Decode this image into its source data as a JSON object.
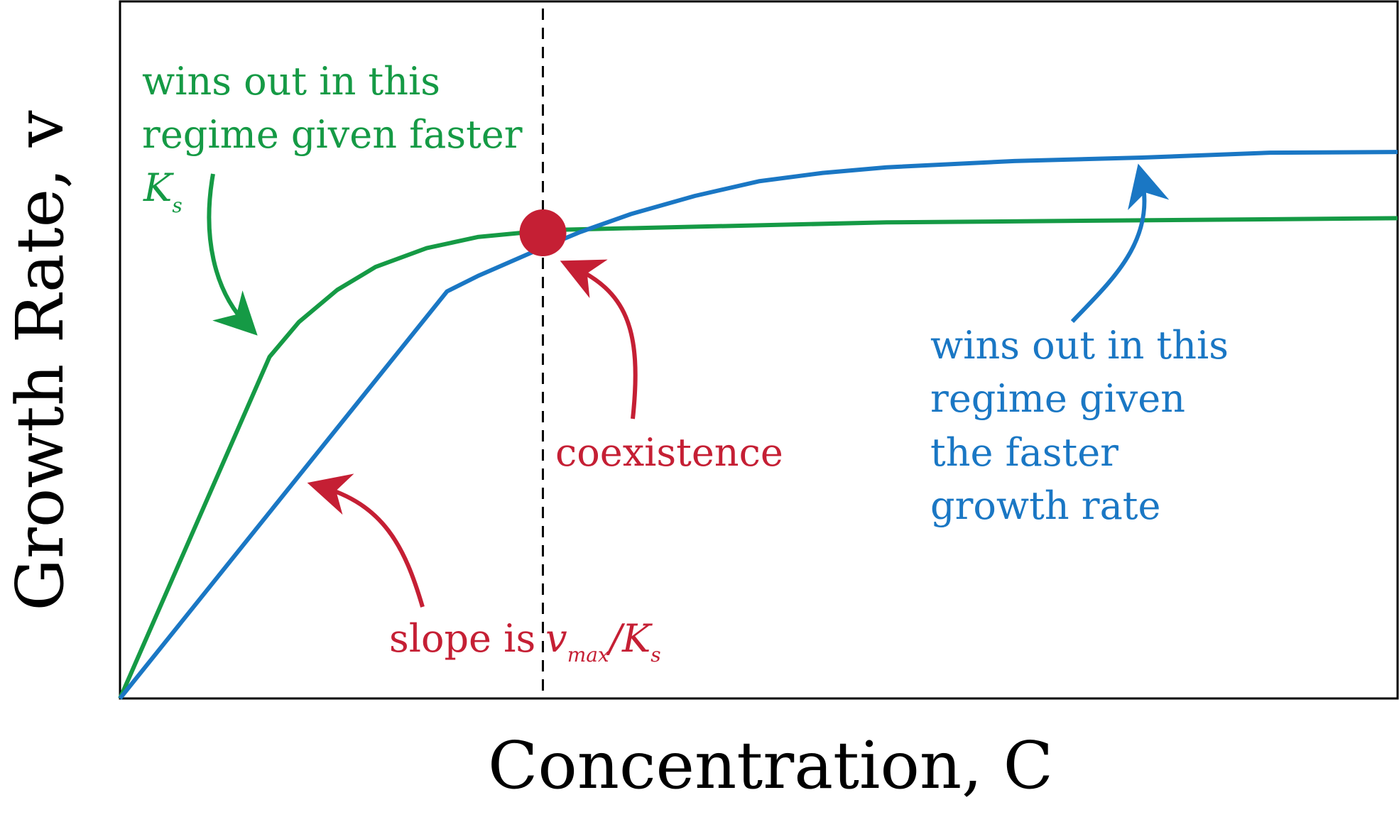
{
  "colors": {
    "green": "#159a45",
    "blue": "#1a77c4",
    "red": "#c51f34",
    "axis": "#000000",
    "dashed": "#000000"
  },
  "chart_data": {
    "type": "line",
    "xlabel": "Concentration, C",
    "ylabel": "Growth Rate, v",
    "xlim": [
      0,
      100
    ],
    "ylim": [
      0,
      100
    ],
    "grid": false,
    "legend": "none",
    "series": [
      {
        "color": "#159a45",
        "points": [
          [
            0,
            0
          ],
          [
            11.7,
            49
          ],
          [
            14,
            54
          ],
          [
            17,
            58.6
          ],
          [
            20,
            61.9
          ],
          [
            24,
            64.6
          ],
          [
            28,
            66.2
          ],
          [
            32,
            66.9
          ],
          [
            33.5,
            67.2
          ],
          [
            60,
            68.3
          ],
          [
            100,
            68.9
          ]
        ]
      },
      {
        "color": "#1a77c4",
        "points": [
          [
            0,
            0
          ],
          [
            25.6,
            58.4
          ],
          [
            28,
            60.6
          ],
          [
            30.5,
            62.6
          ],
          [
            33,
            64.6
          ],
          [
            36,
            66.9
          ],
          [
            40,
            69.5
          ],
          [
            45,
            72.1
          ],
          [
            50,
            74.2
          ],
          [
            55,
            75.4
          ],
          [
            60,
            76.2
          ],
          [
            70,
            77.1
          ],
          [
            80,
            77.6
          ],
          [
            90,
            78.3
          ],
          [
            100,
            78.4
          ]
        ]
      }
    ],
    "markers": [
      {
        "label": "coexistence",
        "x": 33.1,
        "y": 66.8,
        "color": "#c51f34"
      }
    ],
    "vline": {
      "x": 33.1,
      "style": "dashed"
    },
    "annotations": {
      "green_text": [
        "wins out in this",
        "regime given faster"
      ],
      "green_ks_base": "K",
      "green_ks_sub": "s",
      "blue_text": [
        "wins out in this",
        "regime given",
        "the faster",
        "growth rate"
      ],
      "coexistence_text": "coexistence",
      "slope_prefix": "slope is",
      "slope_v": "v",
      "slope_v_sub": "max",
      "slope_slash": "/",
      "slope_k": "K",
      "slope_k_sub": "s"
    }
  }
}
